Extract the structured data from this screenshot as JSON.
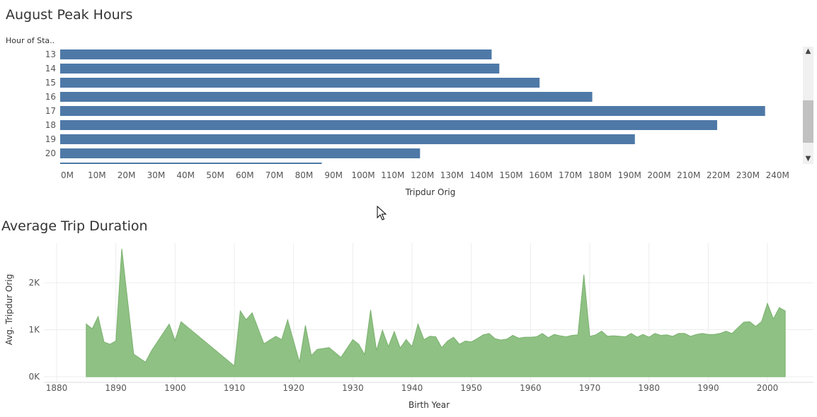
{
  "charts": {
    "peak": {
      "title": "August Peak Hours",
      "row_header": "Hour of Sta.."
    },
    "duration": {
      "title": "Average Trip Duration"
    }
  },
  "colors": {
    "bar": "#4e79a7",
    "area": "#8fc184",
    "area_line": "#79b06d",
    "grid": "#ececec",
    "text": "#555555"
  },
  "icons": {
    "scroll_up": "▲",
    "scroll_down": "▼"
  },
  "chart_data": [
    {
      "type": "bar",
      "orientation": "horizontal",
      "title": "August Peak Hours",
      "ylabel": "Hour of Sta..",
      "xlabel": "Tripdur Orig",
      "xlim": [
        0,
        250000000
      ],
      "x_ticks": [
        0,
        10000000,
        20000000,
        30000000,
        40000000,
        50000000,
        60000000,
        70000000,
        80000000,
        90000000,
        100000000,
        110000000,
        120000000,
        130000000,
        140000000,
        150000000,
        160000000,
        170000000,
        180000000,
        190000000,
        200000000,
        210000000,
        220000000,
        230000000,
        240000000
      ],
      "x_tick_labels": [
        "0M",
        "10M",
        "20M",
        "30M",
        "40M",
        "50M",
        "60M",
        "70M",
        "80M",
        "90M",
        "100M",
        "110M",
        "120M",
        "130M",
        "140M",
        "150M",
        "160M",
        "170M",
        "180M",
        "190M",
        "200M",
        "210M",
        "220M",
        "230M",
        "240M"
      ],
      "categories": [
        "13",
        "14",
        "15",
        "16",
        "17",
        "18",
        "19",
        "20"
      ],
      "values": [
        145800000,
        148400000,
        162000000,
        179800000,
        238200000,
        222000000,
        194200000,
        121600000
      ],
      "partial_next_row_value": 88400000
    },
    {
      "type": "area",
      "title": "Average Trip Duration",
      "xlabel": "Birth Year",
      "ylabel": "Avg. Tripdur Orig",
      "xlim": [
        1878,
        2009
      ],
      "ylim": [
        -120,
        2880
      ],
      "x_ticks": [
        1880,
        1890,
        1900,
        1910,
        1920,
        1930,
        1940,
        1950,
        1960,
        1970,
        1980,
        1990,
        2000
      ],
      "x_tick_labels": [
        "1880",
        "1890",
        "1900",
        "1910",
        "1920",
        "1930",
        "1940",
        "1950",
        "1960",
        "1970",
        "1980",
        "1990",
        "2000"
      ],
      "y_ticks": [
        0,
        1000,
        2000
      ],
      "y_tick_labels": [
        "0K",
        "1K",
        "2K"
      ],
      "x": [
        1885,
        1886,
        1887,
        1888,
        1889,
        1890,
        1891,
        1893,
        1895,
        1896,
        1899,
        1900,
        1901,
        1910,
        1911,
        1912,
        1913,
        1915,
        1917,
        1918,
        1919,
        1921,
        1922,
        1923,
        1924,
        1926,
        1928,
        1930,
        1931,
        1932,
        1933,
        1934,
        1935,
        1936,
        1937,
        1938,
        1939,
        1940,
        1941,
        1942,
        1943,
        1944,
        1945,
        1946,
        1947,
        1948,
        1949,
        1950,
        1951,
        1952,
        1953,
        1954,
        1955,
        1956,
        1957,
        1958,
        1959,
        1960,
        1961,
        1962,
        1963,
        1964,
        1965,
        1966,
        1967,
        1968,
        1969,
        1970,
        1971,
        1972,
        1973,
        1974,
        1975,
        1976,
        1977,
        1978,
        1979,
        1980,
        1981,
        1982,
        1983,
        1984,
        1985,
        1986,
        1987,
        1988,
        1989,
        1990,
        1991,
        1992,
        1993,
        1994,
        1995,
        1996,
        1997,
        1998,
        1999,
        2000,
        2001,
        2002,
        2003
      ],
      "values": [
        1120,
        1020,
        1280,
        740,
        690,
        760,
        2720,
        480,
        310,
        550,
        1120,
        770,
        1170,
        230,
        1400,
        1210,
        1360,
        700,
        860,
        790,
        1210,
        310,
        1090,
        450,
        580,
        620,
        410,
        790,
        690,
        470,
        1420,
        560,
        990,
        640,
        960,
        610,
        790,
        640,
        1120,
        790,
        860,
        850,
        620,
        760,
        840,
        690,
        760,
        740,
        810,
        890,
        920,
        810,
        780,
        800,
        880,
        820,
        840,
        840,
        850,
        920,
        830,
        900,
        870,
        850,
        880,
        890,
        2170,
        860,
        890,
        970,
        860,
        870,
        860,
        850,
        920,
        840,
        900,
        840,
        920,
        880,
        890,
        860,
        920,
        920,
        860,
        900,
        920,
        900,
        900,
        920,
        970,
        920,
        1040,
        1160,
        1170,
        1070,
        1170,
        1560,
        1230,
        1470,
        1400
      ]
    }
  ]
}
